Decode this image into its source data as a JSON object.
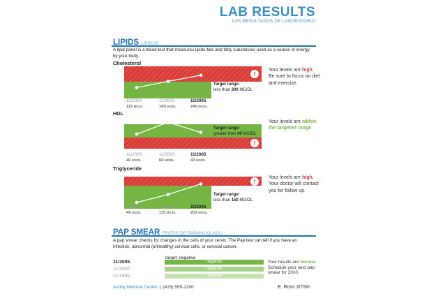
{
  "header": {
    "title": "LAB RESULTS",
    "subtitle": "LOS RESULTADOS DE LABORATORIO"
  },
  "lipids": {
    "title": "LIPIDS",
    "subtitle": "LÍPIDOS",
    "description": "A lipid panel is a blood test that measures lipids-fats and fatty substances used as a source of energy by your body."
  },
  "colors": {
    "red": "#d63a36",
    "green": "#74b544",
    "blue": "#1f72b8",
    "grey": "#999999"
  },
  "chart_data": [
    {
      "type": "line",
      "title": "Cholesterol",
      "x": [
        "11/2000",
        "11/2003",
        "11/2005"
      ],
      "values": [
        119,
        180,
        240
      ],
      "value_labels": [
        "119",
        "180",
        "240"
      ],
      "unit": "MG/DL",
      "target_label": "Target range:",
      "target_prefix": "less than ",
      "target_value": "200",
      "target_unit": " MG/DL",
      "target_kind": "below",
      "ylim": [
        40,
        300
      ],
      "status": "high",
      "note_pre": "Your levels are ",
      "note_status": "high",
      "note_post": ". Be sure to focus on diet and exercise."
    },
    {
      "type": "line",
      "title": "HDL",
      "x": [
        "11/2000",
        "11/2003",
        "11/2005"
      ],
      "values": [
        40,
        60,
        43
      ],
      "value_labels": [
        "40",
        "60",
        "43"
      ],
      "unit": "MG/DL",
      "target_label": "Target range:",
      "target_prefix": "greater than ",
      "target_value": "40",
      "target_unit": " MG/DL",
      "target_kind": "above",
      "ylim": [
        20,
        65
      ],
      "status": "within the targeted range",
      "note_pre": "Your levels are ",
      "note_status": "within the targeted range",
      "note_post": ""
    },
    {
      "type": "line",
      "title": "Triglyceride",
      "x": [
        "11/2000",
        "11/2003",
        "11/2005"
      ],
      "values": [
        49,
        115,
        202
      ],
      "value_labels": [
        "49",
        "115",
        "202"
      ],
      "unit": "MG/DL",
      "target_label": "Target range:",
      "target_prefix": "less than ",
      "target_value": "150",
      "target_unit": " MG/DL",
      "target_kind": "below",
      "ylim": [
        20,
        240
      ],
      "status": "high",
      "note_pre": "Your levels are ",
      "note_status": "high",
      "note_post": ". Your doctor will contact you for follow up."
    }
  ],
  "pap": {
    "title": "PAP SMEAR",
    "subtitle": "FROTIS DE PAPANICOLAOU",
    "description": "A pap smear checks for changes in the cells of your cervix. The Pap test can tell if you have an infection, abnormal (unhealthy) cervical cells, or cervical cancer.",
    "target": "target: negative",
    "rows": [
      {
        "date": "11/2005",
        "result": "negative"
      },
      {
        "date": "11/2000",
        "result": "negative"
      },
      {
        "date": "11/1995",
        "result": "negative"
      }
    ],
    "note_pre": "Your results are ",
    "note_status": "normal",
    "note_post": ". Schedule your next pap smear for 2010."
  },
  "footer": {
    "clinic": "Ashby Medical Center",
    "separator": "|",
    "phone": "(415) 555-1200",
    "signature": "E. Ross 3/7/60"
  }
}
